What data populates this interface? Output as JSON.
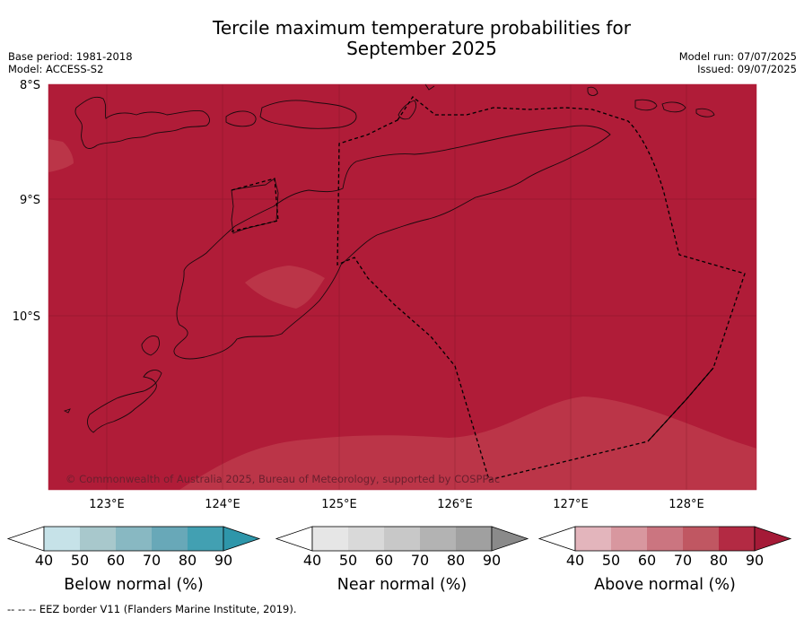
{
  "title_line1": "Tercile maximum temperature probabilities for",
  "title_line2": "September 2025",
  "meta_left": {
    "base_period": "Base period: 1981-2018",
    "model": "Model: ACCESS-S2"
  },
  "meta_right": {
    "model_run": "Model run: 07/07/2025",
    "issued": "Issued: 09/07/2025"
  },
  "lat_labels": [
    "8°S",
    "9°S",
    "10°S"
  ],
  "lon_labels": [
    "123°E",
    "124°E",
    "125°E",
    "126°E",
    "127°E",
    "128°E"
  ],
  "copyright": "© Commonwealth of Australia 2025, Bureau of Meteorology, supported by COSPPac",
  "colorbars": [
    {
      "name": "Below normal (%)",
      "ticks": [
        "40",
        "50",
        "60",
        "70",
        "80",
        "90"
      ],
      "colors": [
        "#ffffff",
        "#c6e2e8",
        "#a8c8cc",
        "#88b8c2",
        "#68a8b8",
        "#42a0b2",
        "#2e96aa"
      ]
    },
    {
      "name": "Near normal (%)",
      "ticks": [
        "40",
        "50",
        "60",
        "70",
        "80",
        "90"
      ],
      "colors": [
        "#ffffff",
        "#e6e6e6",
        "#d9d9d9",
        "#c8c8c8",
        "#b3b3b3",
        "#a0a0a0",
        "#8a8a8a"
      ]
    },
    {
      "name": "Above normal (%)",
      "ticks": [
        "40",
        "50",
        "60",
        "70",
        "80",
        "90"
      ],
      "colors": [
        "#ffffff",
        "#e3b5bc",
        "#d8979f",
        "#cb7580",
        "#c05762",
        "#b32a43",
        "#a51a37"
      ]
    }
  ],
  "map_colors": {
    "above_90": "#b01c38",
    "above_80": "#bb3548"
  },
  "footnote": "--  --  -- EEZ border V11 (Flanders Marine Institute, 2019)."
}
